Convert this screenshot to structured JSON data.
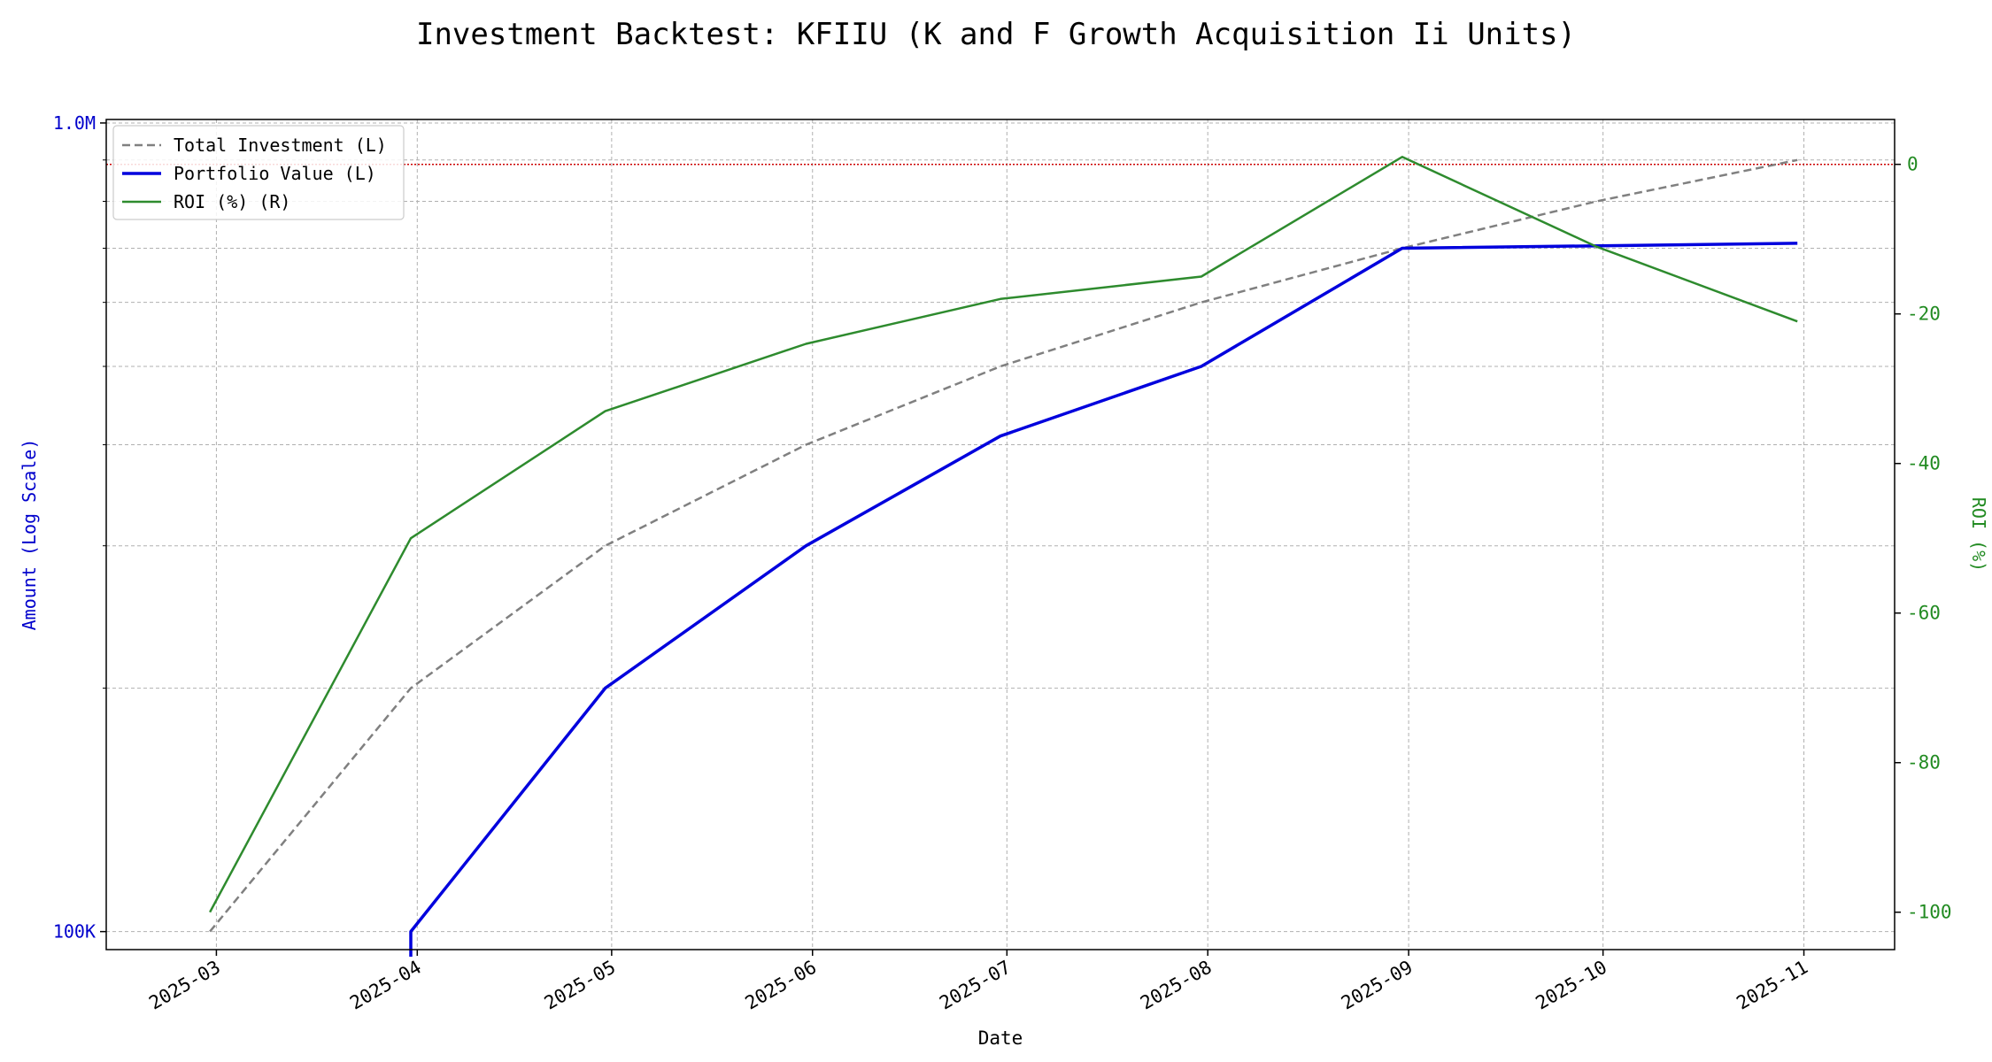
{
  "chart_data": {
    "type": "line",
    "title": "Investment Backtest: KFIIU (K and F Growth Acquisition Ii Units)",
    "xlabel": "Date",
    "ylabel_left": "Amount (Log Scale)",
    "ylabel_right": "ROI (%)",
    "x_ticks": [
      "2025-03",
      "2025-04",
      "2025-05",
      "2025-06",
      "2025-07",
      "2025-08",
      "2025-09",
      "2025-10",
      "2025-11"
    ],
    "y_left_scale": "log",
    "y_left_ticks": [
      {
        "value": 100000,
        "label": "100K"
      },
      {
        "value": 1000000,
        "label": "1.0M"
      }
    ],
    "y_left_range": [
      95000,
      1010000
    ],
    "y_right_ticks": [
      0,
      -20,
      -40,
      -60,
      -80,
      -100
    ],
    "y_right_range": [
      -105,
      6
    ],
    "x": [
      "2025-02-28",
      "2025-03-31",
      "2025-04-30",
      "2025-05-31",
      "2025-06-30",
      "2025-07-31",
      "2025-08-31",
      "2025-09-30",
      "2025-10-31"
    ],
    "x_range": [
      "2025-02-12",
      "2025-11-15"
    ],
    "series": [
      {
        "name": "Total Investment (L)",
        "axis": "left",
        "color": "#808080",
        "style": "dashed",
        "values": [
          100000,
          200000,
          300000,
          400000,
          500000,
          600000,
          700000,
          800000,
          900000
        ]
      },
      {
        "name": "Portfolio Value (L)",
        "axis": "left",
        "color": "#0000dd",
        "style": "solid",
        "x": [
          "2025-03-31",
          "2025-03-31",
          "2025-04-30",
          "2025-05-31",
          "2025-06-30",
          "2025-07-31",
          "2025-08-31",
          "2025-10-31"
        ],
        "values": [
          0,
          100000,
          200000,
          300000,
          410000,
          500000,
          700000,
          710000
        ]
      },
      {
        "name": "ROI (%) (R)",
        "axis": "right",
        "color": "#2e8b2e",
        "style": "solid",
        "values": [
          -100,
          -50,
          -33,
          -24,
          -18,
          -15,
          1,
          -11,
          -21
        ]
      }
    ],
    "reference_line": {
      "axis": "right",
      "value": 0,
      "color": "#cc0000"
    },
    "grid": true,
    "legend_position": "top-left"
  }
}
